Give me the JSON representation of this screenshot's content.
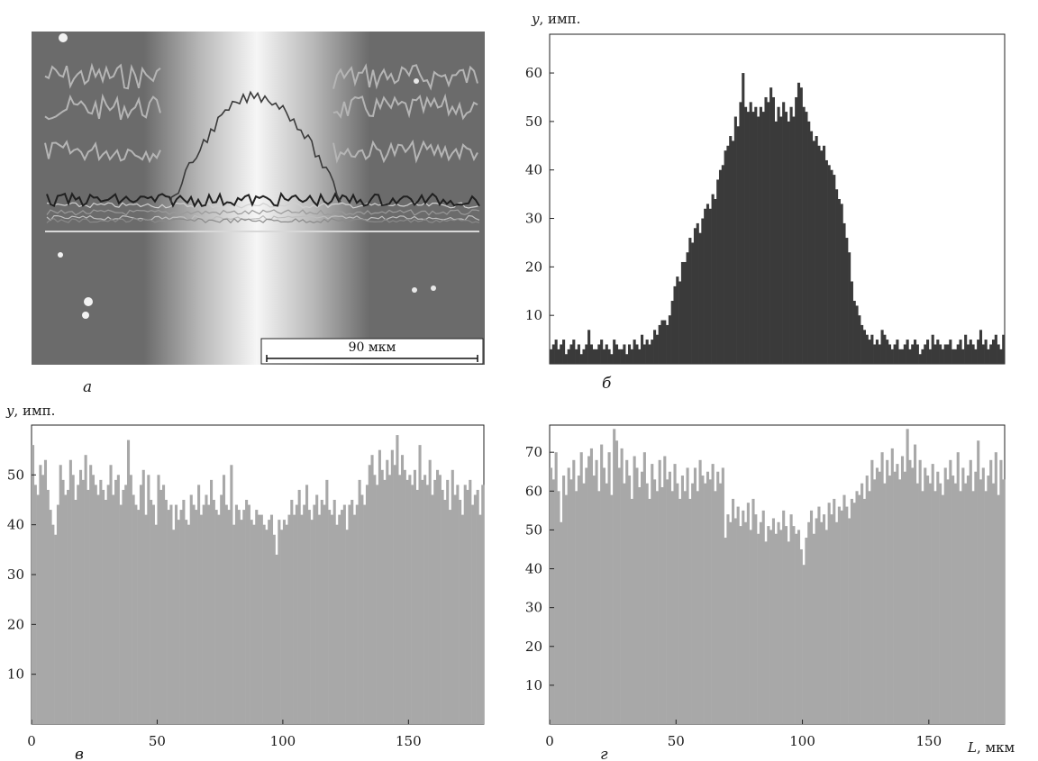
{
  "panels": {
    "a": {
      "label": "а",
      "scale_bar_text": "90 мкм"
    },
    "b": {
      "label": "б",
      "ylabel_var": "y",
      "ylabel_unit": ", имп."
    },
    "c": {
      "label": "в",
      "ylabel_var": "y",
      "ylabel_unit": ", имп."
    },
    "d": {
      "label": "г",
      "xlabel_var": "L",
      "xlabel_unit": ", мкм"
    }
  },
  "colors": {
    "dark_bars": "#3a3a3a",
    "light_bars": "#a8a8a8",
    "micrograph_bg": "#6b6b6b",
    "stripe": "#f4f4f4",
    "trace_light": "#b5b5b5",
    "trace_dark": "#202020"
  },
  "chart_data": [
    {
      "id": "b",
      "type": "bar",
      "title": "",
      "xlabel": "",
      "ylabel": "y, имп.",
      "xlim": [
        0,
        180
      ],
      "ylim": [
        0,
        68
      ],
      "yticks": [
        10,
        20,
        30,
        40,
        50,
        60
      ],
      "xticks": [],
      "legend": false,
      "grid": false,
      "x": [
        0.5,
        1.5,
        2.5,
        3.5,
        4.5,
        5.5,
        6.5,
        7.5,
        8.5,
        9.5,
        10.5,
        11.5,
        12.5,
        13.5,
        14.5,
        15.5,
        16.5,
        17.5,
        18.5,
        19.5,
        20.5,
        21.5,
        22.5,
        23.5,
        24.5,
        25.5,
        26.5,
        27.5,
        28.5,
        29.5,
        30.5,
        31.5,
        32.5,
        33.5,
        34.5,
        35.5,
        36.5,
        37.5,
        38.5,
        39.5,
        40.5,
        41.5,
        42.5,
        43.5,
        44.5,
        45.5,
        46.5,
        47.5,
        48.5,
        49.5,
        50.5,
        51.5,
        52.5,
        53.5,
        54.5,
        55.5,
        56.5,
        57.5,
        58.5,
        59.5,
        60.5,
        61.5,
        62.5,
        63.5,
        64.5,
        65.5,
        66.5,
        67.5,
        68.5,
        69.5,
        70.5,
        71.5,
        72.5,
        73.5,
        74.5,
        75.5,
        76.5,
        77.5,
        78.5,
        79.5,
        80.5,
        81.5,
        82.5,
        83.5,
        84.5,
        85.5,
        86.5,
        87.5,
        88.5,
        89.5,
        90.5,
        91.5,
        92.5,
        93.5,
        94.5,
        95.5,
        96.5,
        97.5,
        98.5,
        99.5,
        100.5,
        101.5,
        102.5,
        103.5,
        104.5,
        105.5,
        106.5,
        107.5,
        108.5,
        109.5,
        110.5,
        111.5,
        112.5,
        113.5,
        114.5,
        115.5,
        116.5,
        117.5,
        118.5,
        119.5,
        120.5,
        121.5,
        122.5,
        123.5,
        124.5,
        125.5,
        126.5,
        127.5,
        128.5,
        129.5,
        130.5,
        131.5,
        132.5,
        133.5,
        134.5,
        135.5,
        136.5,
        137.5,
        138.5,
        139.5,
        140.5,
        141.5,
        142.5,
        143.5,
        144.5,
        145.5,
        146.5,
        147.5,
        148.5,
        149.5,
        150.5,
        151.5,
        152.5,
        153.5,
        154.5,
        155.5,
        156.5,
        157.5,
        158.5,
        159.5,
        160.5,
        161.5,
        162.5,
        163.5,
        164.5,
        165.5,
        166.5,
        167.5,
        168.5,
        169.5,
        170.5,
        171.5,
        172.5,
        173.5,
        174.5,
        175.5,
        176.5,
        177.5,
        178.5,
        179.5
      ],
      "values": [
        3,
        4,
        5,
        3,
        4,
        5,
        2,
        3,
        4,
        5,
        3,
        4,
        2,
        3,
        4,
        7,
        4,
        3,
        3,
        4,
        5,
        3,
        4,
        3,
        2,
        5,
        4,
        3,
        3,
        4,
        2,
        4,
        3,
        5,
        4,
        3,
        6,
        4,
        5,
        4,
        5,
        7,
        6,
        8,
        9,
        9,
        8,
        10,
        13,
        16,
        18,
        17,
        21,
        21,
        23,
        26,
        25,
        28,
        29,
        27,
        30,
        32,
        33,
        32,
        35,
        34,
        38,
        40,
        41,
        44,
        45,
        47,
        46,
        51,
        49,
        54,
        60,
        53,
        52,
        54,
        52,
        53,
        51,
        53,
        52,
        55,
        54,
        57,
        55,
        50,
        53,
        51,
        54,
        52,
        50,
        53,
        51,
        55,
        58,
        57,
        53,
        52,
        50,
        48,
        46,
        47,
        45,
        44,
        45,
        42,
        41,
        40,
        39,
        36,
        34,
        33,
        29,
        26,
        23,
        17,
        13,
        12,
        10,
        8,
        7,
        6,
        5,
        6,
        4,
        5,
        4,
        7,
        6,
        5,
        4,
        3,
        4,
        5,
        3,
        3,
        4,
        5,
        3,
        4,
        5,
        4,
        2,
        3,
        4,
        5,
        3,
        6,
        4,
        5,
        4,
        3,
        4,
        4,
        5,
        3,
        3,
        4,
        5,
        3,
        6,
        4,
        5,
        4,
        3,
        5,
        7,
        4,
        5,
        3,
        4,
        5,
        6,
        4,
        3,
        6
      ]
    },
    {
      "id": "c",
      "type": "bar",
      "title": "",
      "xlabel": "",
      "ylabel": "y, имп.",
      "xlim": [
        0,
        180
      ],
      "ylim": [
        0,
        60
      ],
      "yticks": [
        10,
        20,
        30,
        40,
        50
      ],
      "xticks": [
        0,
        50,
        100,
        150
      ],
      "legend": false,
      "grid": false,
      "x": [
        0.5,
        1.5,
        2.5,
        3.5,
        4.5,
        5.5,
        6.5,
        7.5,
        8.5,
        9.5,
        10.5,
        11.5,
        12.5,
        13.5,
        14.5,
        15.5,
        16.5,
        17.5,
        18.5,
        19.5,
        20.5,
        21.5,
        22.5,
        23.5,
        24.5,
        25.5,
        26.5,
        27.5,
        28.5,
        29.5,
        30.5,
        31.5,
        32.5,
        33.5,
        34.5,
        35.5,
        36.5,
        37.5,
        38.5,
        39.5,
        40.5,
        41.5,
        42.5,
        43.5,
        44.5,
        45.5,
        46.5,
        47.5,
        48.5,
        49.5,
        50.5,
        51.5,
        52.5,
        53.5,
        54.5,
        55.5,
        56.5,
        57.5,
        58.5,
        59.5,
        60.5,
        61.5,
        62.5,
        63.5,
        64.5,
        65.5,
        66.5,
        67.5,
        68.5,
        69.5,
        70.5,
        71.5,
        72.5,
        73.5,
        74.5,
        75.5,
        76.5,
        77.5,
        78.5,
        79.5,
        80.5,
        81.5,
        82.5,
        83.5,
        84.5,
        85.5,
        86.5,
        87.5,
        88.5,
        89.5,
        90.5,
        91.5,
        92.5,
        93.5,
        94.5,
        95.5,
        96.5,
        97.5,
        98.5,
        99.5,
        100.5,
        101.5,
        102.5,
        103.5,
        104.5,
        105.5,
        106.5,
        107.5,
        108.5,
        109.5,
        110.5,
        111.5,
        112.5,
        113.5,
        114.5,
        115.5,
        116.5,
        117.5,
        118.5,
        119.5,
        120.5,
        121.5,
        122.5,
        123.5,
        124.5,
        125.5,
        126.5,
        127.5,
        128.5,
        129.5,
        130.5,
        131.5,
        132.5,
        133.5,
        134.5,
        135.5,
        136.5,
        137.5,
        138.5,
        139.5,
        140.5,
        141.5,
        142.5,
        143.5,
        144.5,
        145.5,
        146.5,
        147.5,
        148.5,
        149.5,
        150.5,
        151.5,
        152.5,
        153.5,
        154.5,
        155.5,
        156.5,
        157.5,
        158.5,
        159.5,
        160.5,
        161.5,
        162.5,
        163.5,
        164.5,
        165.5,
        166.5,
        167.5,
        168.5,
        169.5,
        170.5,
        171.5,
        172.5,
        173.5,
        174.5,
        175.5,
        176.5,
        177.5,
        178.5,
        179.5
      ],
      "values": [
        56,
        48,
        46,
        52,
        50,
        53,
        47,
        43,
        40,
        38,
        44,
        52,
        49,
        46,
        47,
        53,
        50,
        45,
        48,
        51,
        49,
        54,
        47,
        52,
        50,
        48,
        46,
        49,
        47,
        45,
        48,
        52,
        46,
        49,
        50,
        44,
        47,
        48,
        57,
        50,
        46,
        44,
        43,
        48,
        51,
        42,
        50,
        45,
        44,
        40,
        50,
        47,
        48,
        45,
        43,
        44,
        39,
        44,
        41,
        43,
        45,
        41,
        40,
        46,
        44,
        43,
        48,
        42,
        44,
        46,
        44,
        49,
        45,
        43,
        42,
        46,
        50,
        44,
        43,
        52,
        40,
        44,
        43,
        41,
        43,
        45,
        44,
        41,
        40,
        43,
        42,
        42,
        40,
        39,
        41,
        42,
        38,
        34,
        41,
        39,
        41,
        40,
        42,
        45,
        42,
        44,
        47,
        42,
        44,
        48,
        43,
        41,
        44,
        46,
        42,
        45,
        44,
        49,
        43,
        42,
        45,
        40,
        42,
        43,
        44,
        39,
        44,
        45,
        42,
        44,
        49,
        46,
        44,
        48,
        52,
        54,
        50,
        48,
        55,
        51,
        49,
        53,
        50,
        55,
        52,
        58,
        50,
        54,
        51,
        49,
        50,
        48,
        51,
        47,
        56,
        49,
        50,
        48,
        53,
        46,
        49,
        51,
        50,
        47,
        45,
        49,
        43,
        51,
        46,
        48,
        45,
        42,
        48,
        47,
        49,
        44,
        46,
        47,
        42,
        48
      ]
    },
    {
      "id": "d",
      "type": "bar",
      "title": "",
      "xlabel": "L, мкм",
      "ylabel": "",
      "xlim": [
        0,
        180
      ],
      "ylim": [
        0,
        77
      ],
      "yticks": [
        10,
        20,
        30,
        40,
        50,
        60,
        70
      ],
      "xticks": [
        0,
        50,
        100,
        150
      ],
      "legend": false,
      "grid": false,
      "x": [
        0.5,
        1.5,
        2.5,
        3.5,
        4.5,
        5.5,
        6.5,
        7.5,
        8.5,
        9.5,
        10.5,
        11.5,
        12.5,
        13.5,
        14.5,
        15.5,
        16.5,
        17.5,
        18.5,
        19.5,
        20.5,
        21.5,
        22.5,
        23.5,
        24.5,
        25.5,
        26.5,
        27.5,
        28.5,
        29.5,
        30.5,
        31.5,
        32.5,
        33.5,
        34.5,
        35.5,
        36.5,
        37.5,
        38.5,
        39.5,
        40.5,
        41.5,
        42.5,
        43.5,
        44.5,
        45.5,
        46.5,
        47.5,
        48.5,
        49.5,
        50.5,
        51.5,
        52.5,
        53.5,
        54.5,
        55.5,
        56.5,
        57.5,
        58.5,
        59.5,
        60.5,
        61.5,
        62.5,
        63.5,
        64.5,
        65.5,
        66.5,
        67.5,
        68.5,
        69.5,
        70.5,
        71.5,
        72.5,
        73.5,
        74.5,
        75.5,
        76.5,
        77.5,
        78.5,
        79.5,
        80.5,
        81.5,
        82.5,
        83.5,
        84.5,
        85.5,
        86.5,
        87.5,
        88.5,
        89.5,
        90.5,
        91.5,
        92.5,
        93.5,
        94.5,
        95.5,
        96.5,
        97.5,
        98.5,
        99.5,
        100.5,
        101.5,
        102.5,
        103.5,
        104.5,
        105.5,
        106.5,
        107.5,
        108.5,
        109.5,
        110.5,
        111.5,
        112.5,
        113.5,
        114.5,
        115.5,
        116.5,
        117.5,
        118.5,
        119.5,
        120.5,
        121.5,
        122.5,
        123.5,
        124.5,
        125.5,
        126.5,
        127.5,
        128.5,
        129.5,
        130.5,
        131.5,
        132.5,
        133.5,
        134.5,
        135.5,
        136.5,
        137.5,
        138.5,
        139.5,
        140.5,
        141.5,
        142.5,
        143.5,
        144.5,
        145.5,
        146.5,
        147.5,
        148.5,
        149.5,
        150.5,
        151.5,
        152.5,
        153.5,
        154.5,
        155.5,
        156.5,
        157.5,
        158.5,
        159.5,
        160.5,
        161.5,
        162.5,
        163.5,
        164.5,
        165.5,
        166.5,
        167.5,
        168.5,
        169.5,
        170.5,
        171.5,
        172.5,
        173.5,
        174.5,
        175.5,
        176.5,
        177.5,
        178.5,
        179.5
      ],
      "values": [
        66,
        63,
        70,
        60,
        52,
        64,
        59,
        66,
        63,
        68,
        60,
        64,
        70,
        62,
        66,
        69,
        71,
        64,
        68,
        60,
        72,
        66,
        62,
        70,
        59,
        76,
        73,
        66,
        71,
        62,
        68,
        64,
        58,
        69,
        66,
        61,
        65,
        70,
        62,
        58,
        67,
        63,
        60,
        68,
        61,
        69,
        63,
        65,
        60,
        67,
        62,
        58,
        64,
        60,
        66,
        58,
        62,
        66,
        60,
        68,
        64,
        62,
        65,
        63,
        67,
        60,
        65,
        62,
        66,
        48,
        54,
        52,
        58,
        53,
        56,
        51,
        55,
        52,
        57,
        50,
        58,
        54,
        49,
        52,
        55,
        47,
        51,
        50,
        53,
        49,
        52,
        50,
        55,
        51,
        47,
        54,
        51,
        49,
        50,
        45,
        41,
        48,
        52,
        55,
        49,
        53,
        56,
        52,
        54,
        50,
        57,
        54,
        58,
        52,
        56,
        55,
        59,
        56,
        53,
        58,
        57,
        60,
        59,
        62,
        58,
        64,
        60,
        68,
        63,
        66,
        65,
        70,
        62,
        68,
        64,
        71,
        65,
        67,
        63,
        69,
        65,
        76,
        68,
        66,
        72,
        62,
        68,
        60,
        66,
        64,
        62,
        67,
        60,
        65,
        62,
        59,
        66,
        63,
        68,
        64,
        62,
        70,
        60,
        66,
        62,
        64,
        68,
        60,
        65,
        73,
        63,
        66,
        60,
        64,
        68,
        62,
        70,
        59,
        68,
        63
      ]
    }
  ]
}
